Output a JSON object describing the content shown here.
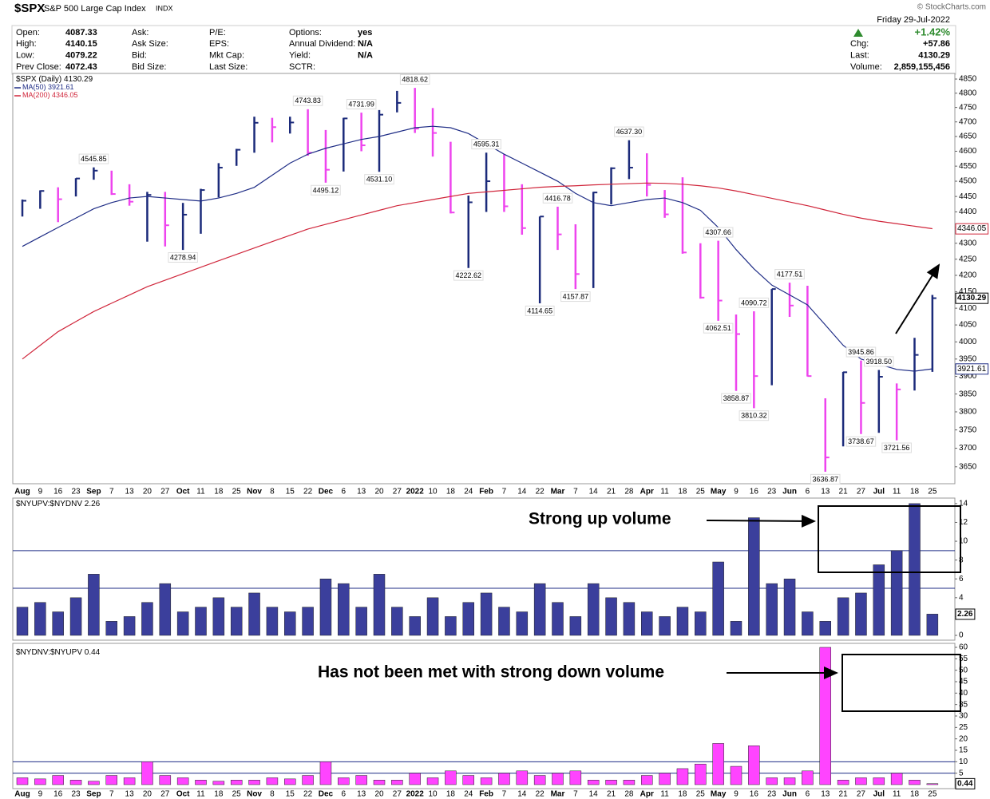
{
  "header": {
    "symbol": "$SPX",
    "name": "S&P 500 Large Cap Index",
    "exchange": "INDX",
    "date": "Friday 29-Jul-2022",
    "change_pct": "+1.42%",
    "columns": [
      [
        {
          "label": "Open:",
          "value": "4087.33"
        },
        {
          "label": "High:",
          "value": "4140.15"
        },
        {
          "label": "Low:",
          "value": "4079.22"
        },
        {
          "label": "Prev Close:",
          "value": "4072.43"
        }
      ],
      [
        {
          "label": "Ask:"
        },
        {
          "label": "Ask Size:"
        },
        {
          "label": "Bid:"
        },
        {
          "label": "Bid Size:"
        }
      ],
      [
        {
          "label": "P/E:"
        },
        {
          "label": "EPS:"
        },
        {
          "label": "Mkt Cap:"
        },
        {
          "label": "Last Size:"
        }
      ],
      [
        {
          "label": "Options:",
          "value": "yes"
        },
        {
          "label": "Annual Dividend:",
          "value": "N/A"
        },
        {
          "label": "Yield:",
          "value": "N/A"
        },
        {
          "label": "SCTR:"
        }
      ]
    ],
    "quote": [
      {
        "label": "Chg:",
        "value": "+57.86"
      },
      {
        "label": "Last:",
        "value": "4130.29"
      },
      {
        "label": "Volume:",
        "value": "2,859,155,456"
      }
    ]
  },
  "watermark": "© StockCharts.com",
  "callouts": [
    "Strong up volume",
    "Has not been met with strong down volume"
  ],
  "chart_data": [
    {
      "type": "hlc",
      "name": "$SPX (Daily)",
      "log": true,
      "up_color": "#1b2a7a",
      "down_color": "#ee44ee",
      "categories": [
        "Aug",
        "9",
        "16",
        "23",
        "Sep",
        "7",
        "13",
        "20",
        "27",
        "Oct",
        "11",
        "18",
        "25",
        "Nov",
        "8",
        "15",
        "22",
        "Dec",
        "6",
        "13",
        "20",
        "27",
        "2022",
        "10",
        "18",
        "24",
        "Feb",
        "7",
        "14",
        "22",
        "Mar",
        "7",
        "14",
        "21",
        "28",
        "Apr",
        "11",
        "18",
        "25",
        "May",
        "9",
        "16",
        "23",
        "Jun",
        "6",
        "13",
        "21",
        "27",
        "Jul",
        "11",
        "18",
        "25"
      ],
      "high": [
        4440,
        4470,
        4480,
        4510,
        4545.85,
        4535,
        4490,
        4465,
        4465,
        4429,
        4475,
        4560,
        4608,
        4718,
        4714,
        4718,
        4743.83,
        4672,
        4714,
        4731.99,
        4741,
        4808,
        4818.62,
        4748,
        4632,
        4453,
        4595.31,
        4590,
        4490,
        4385,
        4416.78,
        4360,
        4465,
        4546,
        4637.3,
        4593,
        4471,
        4513,
        4300,
        4307.66,
        4081,
        4090.72,
        4158,
        4177.51,
        4168,
        3838,
        3913,
        3945.86,
        3918.5,
        3880,
        4012,
        4140.15
      ],
      "low": [
        4385,
        4410,
        4367,
        4450,
        4505,
        4455,
        4420,
        4305,
        4290,
        4278.94,
        4330,
        4447,
        4551,
        4595,
        4630,
        4660,
        4585,
        4495.12,
        4532,
        4600,
        4531.1,
        4733,
        4662,
        4582,
        4395,
        4222.62,
        4400,
        4400,
        4327,
        4114.65,
        4279,
        4157.87,
        4161,
        4424,
        4507,
        4450,
        4381,
        4267,
        4129,
        4062.51,
        3858.87,
        3810.32,
        3875,
        4074,
        3900,
        3636.87,
        3705,
        3738.67,
        3742,
        3721.56,
        3860,
        3913
      ],
      "close": [
        4436,
        4468,
        4441,
        4509,
        4535,
        4458,
        4433,
        4455,
        4357,
        4391,
        4471,
        4545,
        4605,
        4697,
        4682,
        4698,
        4595,
        4538,
        4712,
        4620,
        4725,
        4766,
        4677,
        4662,
        4398,
        4431,
        4500,
        4418,
        4348,
        4385,
        4328,
        4204,
        4463,
        4543,
        4545,
        4488,
        4392,
        4271,
        4132,
        4123,
        4023,
        3901,
        4158,
        4108,
        3901,
        3675,
        3912,
        3825,
        3899,
        3863,
        3962,
        4130.29
      ],
      "high_labels": [
        null,
        null,
        null,
        null,
        4545.85,
        null,
        null,
        null,
        null,
        null,
        null,
        null,
        null,
        null,
        null,
        null,
        4743.83,
        null,
        null,
        4731.99,
        null,
        null,
        4818.62,
        null,
        null,
        null,
        4595.31,
        null,
        null,
        null,
        4416.78,
        null,
        null,
        null,
        {
          "value": 4637.3,
          "label": "4637.30"
        },
        null,
        null,
        null,
        null,
        4307.66,
        null,
        4090.72,
        null,
        4177.51,
        null,
        null,
        null,
        3945.86,
        {
          "value": 3918.5,
          "label": "3918.50"
        },
        null,
        null,
        null
      ],
      "low_labels": [
        null,
        null,
        null,
        null,
        null,
        null,
        null,
        null,
        null,
        4278.94,
        null,
        null,
        null,
        null,
        null,
        null,
        null,
        4495.12,
        null,
        null,
        {
          "value": 4531.1,
          "label": "4531.10"
        },
        null,
        null,
        null,
        null,
        4222.62,
        null,
        null,
        null,
        4114.65,
        null,
        4157.87,
        null,
        null,
        null,
        null,
        null,
        null,
        null,
        4062.51,
        3858.87,
        3810.32,
        null,
        null,
        null,
        3636.87,
        null,
        3738.67,
        null,
        3721.56,
        null,
        null
      ],
      "series": [
        {
          "name": "MA(50)",
          "color": "#1f2d86",
          "values": [
            4290,
            4320,
            4350,
            4380,
            4410,
            4430,
            4445,
            4450,
            4445,
            4440,
            4435,
            4445,
            4460,
            4480,
            4520,
            4560,
            4590,
            4610,
            4625,
            4640,
            4650,
            4665,
            4680,
            4685,
            4680,
            4660,
            4625,
            4590,
            4560,
            4530,
            4500,
            4460,
            4430,
            4420,
            4430,
            4440,
            4445,
            4430,
            4405,
            4350,
            4280,
            4220,
            4170,
            4140,
            4110,
            4050,
            3990,
            3950,
            3935,
            3920,
            3915,
            3921.61
          ]
        },
        {
          "name": "MA(200)",
          "color": "#d0263b",
          "values": [
            3950,
            3990,
            4030,
            4060,
            4090,
            4115,
            4140,
            4165,
            4185,
            4205,
            4225,
            4245,
            4265,
            4285,
            4305,
            4325,
            4345,
            4360,
            4375,
            4390,
            4405,
            4420,
            4430,
            4440,
            4450,
            4460,
            4465,
            4470,
            4475,
            4480,
            4483,
            4485,
            4488,
            4490,
            4492,
            4494,
            4493,
            4490,
            4485,
            4478,
            4468,
            4456,
            4444,
            4432,
            4420,
            4406,
            4392,
            4380,
            4370,
            4362,
            4354,
            4346.05
          ]
        }
      ],
      "ylim": [
        3605,
        4870
      ],
      "yticks": [
        3650,
        3700,
        3750,
        3800,
        3850,
        3900,
        3950,
        4000,
        4050,
        4100,
        4150,
        4200,
        4250,
        4300,
        4350,
        4400,
        4450,
        4500,
        4550,
        4600,
        4650,
        4700,
        4750,
        4800,
        4850
      ]
    },
    {
      "type": "bar",
      "name": "$NYUPV:$NYDNV",
      "color": "#3b3f9c",
      "values": [
        3,
        3.5,
        2.5,
        4,
        6.5,
        1.5,
        2,
        3.5,
        5.5,
        2.5,
        3,
        4,
        3,
        4.5,
        3,
        2.5,
        3,
        6,
        5.5,
        3,
        6.5,
        3,
        2,
        4,
        2,
        3.5,
        4.5,
        3,
        2.5,
        5.5,
        3.5,
        2,
        5.5,
        4,
        3.5,
        2.5,
        2,
        3,
        2.5,
        7.8,
        1.5,
        12.5,
        5.5,
        6,
        2.5,
        1.5,
        4,
        4.5,
        7.5,
        9,
        14,
        2.26
      ],
      "ylim": [
        0,
        14.5
      ],
      "yticks": [
        0,
        2,
        4,
        6,
        8,
        10,
        12,
        14
      ],
      "hlines": [
        5,
        9
      ]
    },
    {
      "type": "bar",
      "name": "$NYDNV:$NYUPV",
      "color": "#ff44ff",
      "categories": [
        "Aug",
        "9",
        "16",
        "23",
        "Sep",
        "7",
        "13",
        "20",
        "27",
        "Oct",
        "11",
        "18",
        "25",
        "Nov",
        "8",
        "15",
        "22",
        "Dec",
        "6",
        "13",
        "20",
        "27",
        "2022",
        "10",
        "18",
        "24",
        "Feb",
        "7",
        "14",
        "22",
        "Mar",
        "7",
        "14",
        "21",
        "28",
        "Apr",
        "11",
        "18",
        "25",
        "May",
        "9",
        "16",
        "23",
        "Jun",
        "6",
        "13",
        "21",
        "27",
        "Jul",
        "11",
        "18",
        "25"
      ],
      "values": [
        3,
        2.5,
        4,
        2,
        1.5,
        4,
        3,
        10,
        4,
        3,
        2,
        1.5,
        2,
        2,
        3,
        2.5,
        4,
        10,
        3,
        4,
        2,
        2,
        5,
        3,
        6,
        4,
        3,
        5,
        6,
        4,
        5,
        6,
        2,
        2,
        2,
        4,
        5,
        7,
        9,
        18,
        8,
        17,
        3,
        3,
        6,
        60,
        2,
        3,
        3,
        5,
        2,
        0.44
      ],
      "ylim": [
        0,
        60
      ],
      "yticks": [
        0,
        5,
        10,
        15,
        20,
        25,
        30,
        35,
        40,
        45,
        50,
        55,
        60
      ],
      "hlines": [
        5,
        10
      ]
    }
  ]
}
